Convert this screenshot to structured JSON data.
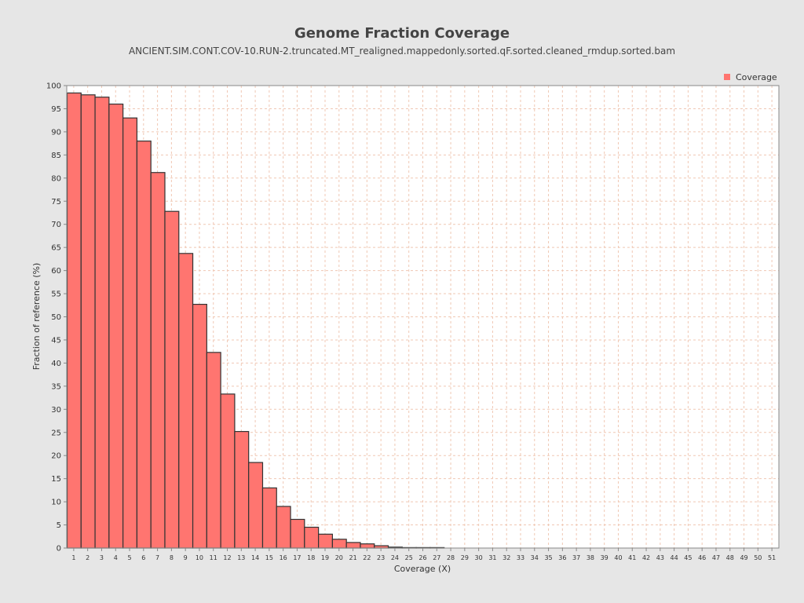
{
  "chart_data": {
    "type": "bar",
    "title": "Genome Fraction Coverage",
    "subtitle": "ANCIENT.SIM.CONT.COV-10.RUN-2.truncated.MT_realigned.mappedonly.sorted.qF.sorted.cleaned_rmdup.sorted.bam",
    "xlabel": "Coverage (X)",
    "ylabel": "Fraction of reference (%)",
    "ylim": [
      0,
      100
    ],
    "y_ticks": [
      "0",
      "5",
      "10",
      "15",
      "20",
      "25",
      "30",
      "35",
      "40",
      "45",
      "50",
      "55",
      "60",
      "65",
      "70",
      "75",
      "80",
      "85",
      "90",
      "95",
      "100"
    ],
    "categories": [
      "1",
      "2",
      "3",
      "4",
      "5",
      "6",
      "7",
      "8",
      "9",
      "10",
      "11",
      "12",
      "13",
      "14",
      "15",
      "16",
      "17",
      "18",
      "19",
      "20",
      "21",
      "22",
      "23",
      "24",
      "25",
      "26",
      "27",
      "28",
      "29",
      "30",
      "31",
      "32",
      "33",
      "34",
      "35",
      "36",
      "37",
      "38",
      "39",
      "40",
      "41",
      "42",
      "43",
      "44",
      "45",
      "46",
      "47",
      "48",
      "49",
      "50",
      "51"
    ],
    "series": [
      {
        "name": "Coverage",
        "color": "#ff7570",
        "values": [
          98.4,
          98.0,
          97.5,
          96.0,
          93.0,
          88.0,
          81.2,
          72.8,
          63.7,
          52.7,
          42.3,
          33.3,
          25.2,
          18.5,
          13.0,
          9.0,
          6.2,
          4.5,
          3.0,
          1.9,
          1.2,
          0.9,
          0.5,
          0.2,
          0.1,
          0.05,
          0.02,
          0,
          0,
          0,
          0,
          0,
          0,
          0,
          0,
          0,
          0,
          0,
          0,
          0,
          0,
          0,
          0,
          0,
          0,
          0,
          0,
          0,
          0,
          0,
          0
        ]
      }
    ],
    "grid": true,
    "legend": "top-right",
    "colors": {
      "background": "#e6e6e6",
      "plot_background": "#ffffff",
      "grid": "#f0c8b4",
      "bar_stroke": "#333333",
      "legend_marker": "#ff7570"
    }
  }
}
